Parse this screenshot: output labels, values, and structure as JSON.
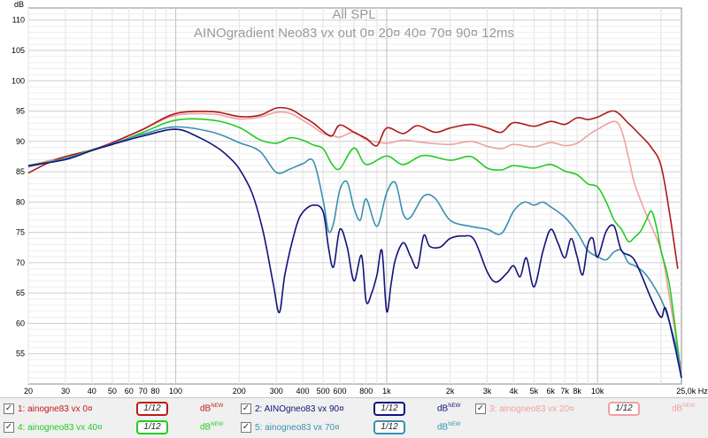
{
  "chart_data": {
    "type": "line",
    "title": "All SPL",
    "subtitle": "AINOgradient Neo83 vx out 0¤ 20¤ 40¤ 70¤ 90¤ 12ms",
    "ylabel": "dB",
    "xunit": "Hz",
    "xscale": "log",
    "xlim": [
      20,
      25000
    ],
    "ylim": [
      50,
      112
    ],
    "grid": true,
    "yticks": [
      55,
      60,
      65,
      70,
      75,
      80,
      85,
      90,
      95,
      100,
      105,
      110
    ],
    "xticks": [
      {
        "v": 20,
        "l": "20"
      },
      {
        "v": 30,
        "l": "30"
      },
      {
        "v": 40,
        "l": "40"
      },
      {
        "v": 50,
        "l": "50"
      },
      {
        "v": 60,
        "l": "60"
      },
      {
        "v": 70,
        "l": "70"
      },
      {
        "v": 80,
        "l": "80"
      },
      {
        "v": 100,
        "l": "100"
      },
      {
        "v": 200,
        "l": "200"
      },
      {
        "v": 300,
        "l": "300"
      },
      {
        "v": 400,
        "l": "400"
      },
      {
        "v": 500,
        "l": "500"
      },
      {
        "v": 600,
        "l": "600"
      },
      {
        "v": 800,
        "l": "800"
      },
      {
        "v": 1000,
        "l": "1k"
      },
      {
        "v": 2000,
        "l": "2k"
      },
      {
        "v": 3000,
        "l": "3k"
      },
      {
        "v": 4000,
        "l": "4k"
      },
      {
        "v": 5000,
        "l": "5k"
      },
      {
        "v": 6000,
        "l": "6k"
      },
      {
        "v": 7000,
        "l": "7k"
      },
      {
        "v": 8000,
        "l": "8k"
      },
      {
        "v": 10000,
        "l": "10k"
      },
      {
        "v": 25000,
        "l": "25,0k Hz"
      }
    ],
    "series": [
      {
        "name": "3: ainogneo83 vx 20¤",
        "color": "#f0a0a0",
        "points": [
          [
            20,
            86
          ],
          [
            30,
            87.5
          ],
          [
            40,
            88.6
          ],
          [
            50,
            89.8
          ],
          [
            70,
            92
          ],
          [
            100,
            94.3
          ],
          [
            150,
            94.5
          ],
          [
            200,
            93.7
          ],
          [
            250,
            94
          ],
          [
            300,
            94.8
          ],
          [
            350,
            94.6
          ],
          [
            400,
            93.5
          ],
          [
            450,
            92.4
          ],
          [
            500,
            91.3
          ],
          [
            550,
            91
          ],
          [
            600,
            90.7
          ],
          [
            700,
            91.5
          ],
          [
            800,
            90.3
          ],
          [
            1000,
            89.7
          ],
          [
            1200,
            90.2
          ],
          [
            1500,
            89.8
          ],
          [
            2000,
            89.5
          ],
          [
            2500,
            90
          ],
          [
            3000,
            89.2
          ],
          [
            3500,
            88.8
          ],
          [
            4000,
            89.5
          ],
          [
            5000,
            89.1
          ],
          [
            6000,
            89.8
          ],
          [
            7000,
            89.3
          ],
          [
            8000,
            89.7
          ],
          [
            9000,
            91
          ],
          [
            10000,
            92
          ],
          [
            12000,
            93.3
          ],
          [
            13000,
            91.8
          ],
          [
            14000,
            87.5
          ],
          [
            15000,
            83
          ],
          [
            17000,
            78
          ],
          [
            20000,
            72
          ],
          [
            22000,
            64
          ],
          [
            25000,
            52
          ]
        ]
      },
      {
        "name": "1: ainogne83 vx 0¤",
        "color": "#b01818",
        "points": [
          [
            20,
            84.8
          ],
          [
            25,
            86.5
          ],
          [
            30,
            87.5
          ],
          [
            40,
            88.6
          ],
          [
            50,
            89.8
          ],
          [
            70,
            92
          ],
          [
            100,
            94.6
          ],
          [
            150,
            94.9
          ],
          [
            200,
            94.1
          ],
          [
            250,
            94.3
          ],
          [
            300,
            95.5
          ],
          [
            350,
            95.3
          ],
          [
            400,
            94.1
          ],
          [
            450,
            93
          ],
          [
            500,
            91.7
          ],
          [
            550,
            90.9
          ],
          [
            600,
            92.7
          ],
          [
            700,
            91.5
          ],
          [
            800,
            90.5
          ],
          [
            900,
            89.3
          ],
          [
            1000,
            92.2
          ],
          [
            1200,
            91.3
          ],
          [
            1400,
            92.6
          ],
          [
            1700,
            91.5
          ],
          [
            2000,
            92.2
          ],
          [
            2500,
            92.8
          ],
          [
            3000,
            92.2
          ],
          [
            3500,
            91.5
          ],
          [
            4000,
            93.1
          ],
          [
            5000,
            92.5
          ],
          [
            6000,
            93.3
          ],
          [
            7000,
            92.8
          ],
          [
            8000,
            93.9
          ],
          [
            9000,
            93.6
          ],
          [
            10000,
            94
          ],
          [
            12000,
            95
          ],
          [
            14000,
            93
          ],
          [
            16000,
            91
          ],
          [
            18000,
            89
          ],
          [
            20000,
            86
          ],
          [
            22000,
            78
          ],
          [
            24000,
            69
          ]
        ]
      },
      {
        "name": "4: ainogneo83 vx 40¤",
        "color": "#22cc22",
        "points": [
          [
            20,
            86
          ],
          [
            30,
            87.2
          ],
          [
            40,
            88.6
          ],
          [
            50,
            89.5
          ],
          [
            70,
            91.5
          ],
          [
            100,
            93.5
          ],
          [
            150,
            93.5
          ],
          [
            200,
            92.3
          ],
          [
            250,
            90.3
          ],
          [
            300,
            89.7
          ],
          [
            350,
            90.6
          ],
          [
            400,
            90.2
          ],
          [
            450,
            89.4
          ],
          [
            500,
            88.8
          ],
          [
            550,
            86.3
          ],
          [
            600,
            85.5
          ],
          [
            700,
            88.9
          ],
          [
            800,
            86.2
          ],
          [
            1000,
            87.6
          ],
          [
            1200,
            86.2
          ],
          [
            1500,
            87.7
          ],
          [
            2000,
            86.9
          ],
          [
            2500,
            87.5
          ],
          [
            3000,
            85.6
          ],
          [
            3500,
            85.3
          ],
          [
            4000,
            86
          ],
          [
            5000,
            85.6
          ],
          [
            6000,
            86.2
          ],
          [
            7000,
            85.1
          ],
          [
            8000,
            84.5
          ],
          [
            9000,
            83
          ],
          [
            10000,
            82.5
          ],
          [
            11000,
            80
          ],
          [
            12000,
            77
          ],
          [
            13000,
            75.5
          ],
          [
            14000,
            73.5
          ],
          [
            15000,
            74.2
          ],
          [
            16000,
            75.2
          ],
          [
            17000,
            77
          ],
          [
            18000,
            78.5
          ],
          [
            19000,
            76
          ],
          [
            20000,
            72
          ],
          [
            22000,
            66
          ],
          [
            25000,
            51
          ]
        ]
      },
      {
        "name": "5: ainogneo83 vx 70¤",
        "color": "#3a90b0",
        "points": [
          [
            20,
            85.8
          ],
          [
            30,
            87.2
          ],
          [
            40,
            88.5
          ],
          [
            50,
            89.6
          ],
          [
            70,
            91.2
          ],
          [
            100,
            92.4
          ],
          [
            150,
            91.5
          ],
          [
            200,
            89.8
          ],
          [
            250,
            88.4
          ],
          [
            300,
            84.9
          ],
          [
            350,
            85.5
          ],
          [
            400,
            86.3
          ],
          [
            450,
            86.7
          ],
          [
            500,
            80.3
          ],
          [
            530,
            75.2
          ],
          [
            560,
            76.5
          ],
          [
            600,
            82
          ],
          [
            650,
            83.3
          ],
          [
            700,
            79
          ],
          [
            750,
            77
          ],
          [
            800,
            80.5
          ],
          [
            900,
            76
          ],
          [
            1000,
            81.5
          ],
          [
            1100,
            83.2
          ],
          [
            1200,
            78
          ],
          [
            1300,
            77.5
          ],
          [
            1500,
            81
          ],
          [
            1700,
            80.6
          ],
          [
            2000,
            77
          ],
          [
            2500,
            76
          ],
          [
            3000,
            75.5
          ],
          [
            3500,
            74.8
          ],
          [
            4000,
            78.5
          ],
          [
            4500,
            80
          ],
          [
            5000,
            79.5
          ],
          [
            5500,
            80
          ],
          [
            6000,
            79.2
          ],
          [
            7000,
            77.5
          ],
          [
            8000,
            75
          ],
          [
            9000,
            72
          ],
          [
            10000,
            71
          ],
          [
            11000,
            70.5
          ],
          [
            12000,
            71.8
          ],
          [
            13000,
            72
          ],
          [
            14000,
            70
          ],
          [
            15000,
            69.5
          ],
          [
            17000,
            68
          ],
          [
            20000,
            64
          ],
          [
            22000,
            60
          ],
          [
            24000,
            55
          ],
          [
            25000,
            51
          ]
        ]
      },
      {
        "name": "2: AINOgneo83 vx 90¤",
        "color": "#12127a",
        "points": [
          [
            20,
            86
          ],
          [
            30,
            87
          ],
          [
            40,
            88.5
          ],
          [
            50,
            89.5
          ],
          [
            70,
            90.9
          ],
          [
            100,
            92
          ],
          [
            130,
            90.6
          ],
          [
            160,
            88.8
          ],
          [
            180,
            87.3
          ],
          [
            200,
            85.5
          ],
          [
            230,
            81.5
          ],
          [
            260,
            75
          ],
          [
            290,
            66.5
          ],
          [
            310,
            61.8
          ],
          [
            330,
            68.2
          ],
          [
            370,
            75.6
          ],
          [
            400,
            78.3
          ],
          [
            450,
            79.5
          ],
          [
            500,
            78.4
          ],
          [
            530,
            72.5
          ],
          [
            560,
            69.3
          ],
          [
            600,
            75.5
          ],
          [
            650,
            72.6
          ],
          [
            700,
            67
          ],
          [
            760,
            71.2
          ],
          [
            800,
            63.6
          ],
          [
            850,
            65
          ],
          [
            900,
            68
          ],
          [
            950,
            72
          ],
          [
            1000,
            62
          ],
          [
            1050,
            66.5
          ],
          [
            1100,
            70.5
          ],
          [
            1200,
            73.3
          ],
          [
            1300,
            71
          ],
          [
            1400,
            69.2
          ],
          [
            1500,
            74.5
          ],
          [
            1600,
            72.7
          ],
          [
            1800,
            72.6
          ],
          [
            2000,
            74
          ],
          [
            2300,
            74.4
          ],
          [
            2600,
            73.8
          ],
          [
            3000,
            68.5
          ],
          [
            3300,
            66.8
          ],
          [
            3700,
            68.2
          ],
          [
            4000,
            69.5
          ],
          [
            4300,
            67.7
          ],
          [
            4600,
            70.8
          ],
          [
            5000,
            66
          ],
          [
            5500,
            71.8
          ],
          [
            6000,
            75.5
          ],
          [
            6500,
            73.2
          ],
          [
            7000,
            70.8
          ],
          [
            7500,
            74
          ],
          [
            8000,
            71
          ],
          [
            8500,
            68
          ],
          [
            9000,
            73
          ],
          [
            9500,
            74
          ],
          [
            10000,
            70.9
          ],
          [
            11000,
            75.2
          ],
          [
            12000,
            76
          ],
          [
            13000,
            72
          ],
          [
            15000,
            70.4
          ],
          [
            18000,
            64
          ],
          [
            20000,
            61
          ],
          [
            21000,
            62.5
          ],
          [
            23000,
            57
          ],
          [
            25000,
            51
          ]
        ]
      }
    ]
  },
  "legend": [
    {
      "name": "1: ainogne83 vx 0¤",
      "smooth": "1/12",
      "db": "dB",
      "new": "NEW",
      "color": "#c01818",
      "col": 0,
      "row": 0
    },
    {
      "name": "2: AINOgneo83 vx 90¤",
      "smooth": "1/12",
      "db": "dB",
      "new": "NEW",
      "color": "#12127a",
      "col": 1,
      "row": 0
    },
    {
      "name": "3: ainogneo83 vx 20¤",
      "smooth": "1/12",
      "db": "dB",
      "new": "NEW",
      "color": "#f0a0a0",
      "col": 2,
      "row": 0
    },
    {
      "name": "4: ainogneo83 vx 40¤",
      "smooth": "1/12",
      "db": "dB",
      "new": "NEW",
      "color": "#22cc22",
      "col": 0,
      "row": 1
    },
    {
      "name": "5: ainogneo83 vx 70¤",
      "smooth": "1/12",
      "db": "dB",
      "new": "NEW",
      "color": "#3a90b0",
      "col": 1,
      "row": 1
    }
  ]
}
